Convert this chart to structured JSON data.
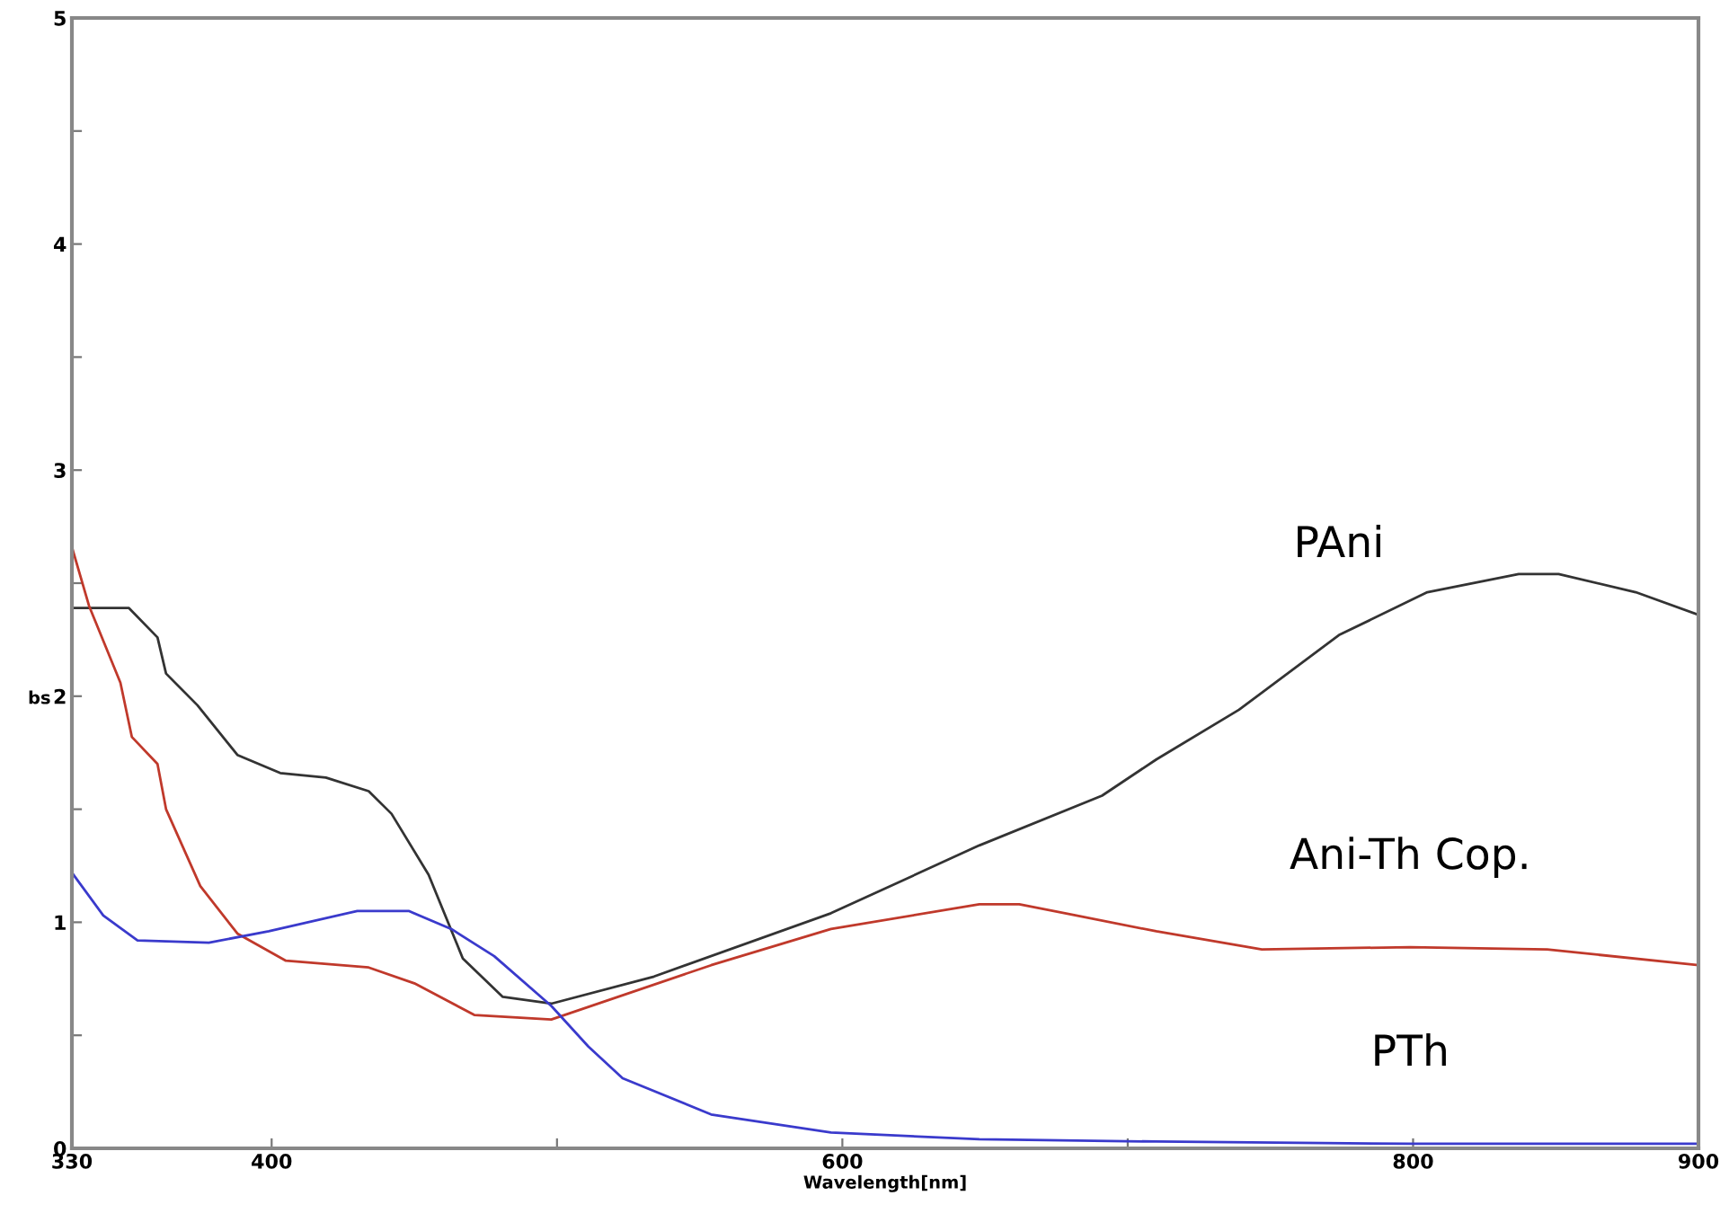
{
  "chart_data": {
    "type": "line",
    "xlabel": "Wavelength[nm]",
    "ylabel": "bs",
    "xlim": [
      330,
      900
    ],
    "ylim": [
      0,
      5
    ],
    "xticks": [
      330,
      400,
      {
        "value": 500,
        "label": null
      },
      600,
      {
        "value": 700,
        "label": null
      },
      800,
      900
    ],
    "yticks": [
      0,
      {
        "value": 0.5,
        "label": null
      },
      1,
      {
        "value": 1.5,
        "label": null
      },
      2,
      {
        "value": 2.5,
        "label": null
      },
      3,
      {
        "value": 3.5,
        "label": null
      },
      4,
      {
        "value": 4.5,
        "label": null
      },
      5
    ],
    "grid": false,
    "legend": false,
    "marker": "none",
    "line_style": "solid",
    "series": [
      {
        "name": "PAni",
        "color": "#333333",
        "x": [
          330,
          350,
          360,
          363,
          374,
          388,
          403,
          419,
          434,
          442,
          455,
          467,
          481,
          498,
          534,
          596,
          648,
          691,
          710,
          739,
          774,
          805,
          837,
          851,
          878,
          900
        ],
        "values": [
          2.39,
          2.39,
          2.26,
          2.1,
          1.96,
          1.74,
          1.66,
          1.64,
          1.58,
          1.48,
          1.21,
          0.84,
          0.67,
          0.64,
          0.76,
          1.04,
          1.34,
          1.56,
          1.72,
          1.94,
          2.27,
          2.46,
          2.54,
          2.54,
          2.46,
          2.36
        ]
      },
      {
        "name": "Ani-Th Cop.",
        "color": "#c0392b",
        "x": [
          330,
          336,
          347,
          351,
          360,
          363,
          375,
          388,
          405,
          434,
          450,
          471,
          498,
          554,
          596,
          648,
          662,
          710,
          747,
          799,
          847,
          900
        ],
        "values": [
          2.66,
          2.4,
          2.06,
          1.82,
          1.7,
          1.5,
          1.16,
          0.95,
          0.83,
          0.8,
          0.73,
          0.59,
          0.57,
          0.81,
          0.97,
          1.08,
          1.08,
          0.96,
          0.88,
          0.89,
          0.88,
          0.81
        ]
      },
      {
        "name": "PTh",
        "color": "#3a3acc",
        "x": [
          330,
          341,
          353,
          378,
          399,
          430,
          448,
          463,
          478,
          498,
          511,
          523,
          554,
          596,
          648,
          710,
          799,
          900
        ],
        "values": [
          1.22,
          1.03,
          0.92,
          0.91,
          0.96,
          1.05,
          1.05,
          0.97,
          0.85,
          0.63,
          0.45,
          0.31,
          0.15,
          0.07,
          0.04,
          0.03,
          0.02,
          0.02
        ]
      }
    ]
  }
}
